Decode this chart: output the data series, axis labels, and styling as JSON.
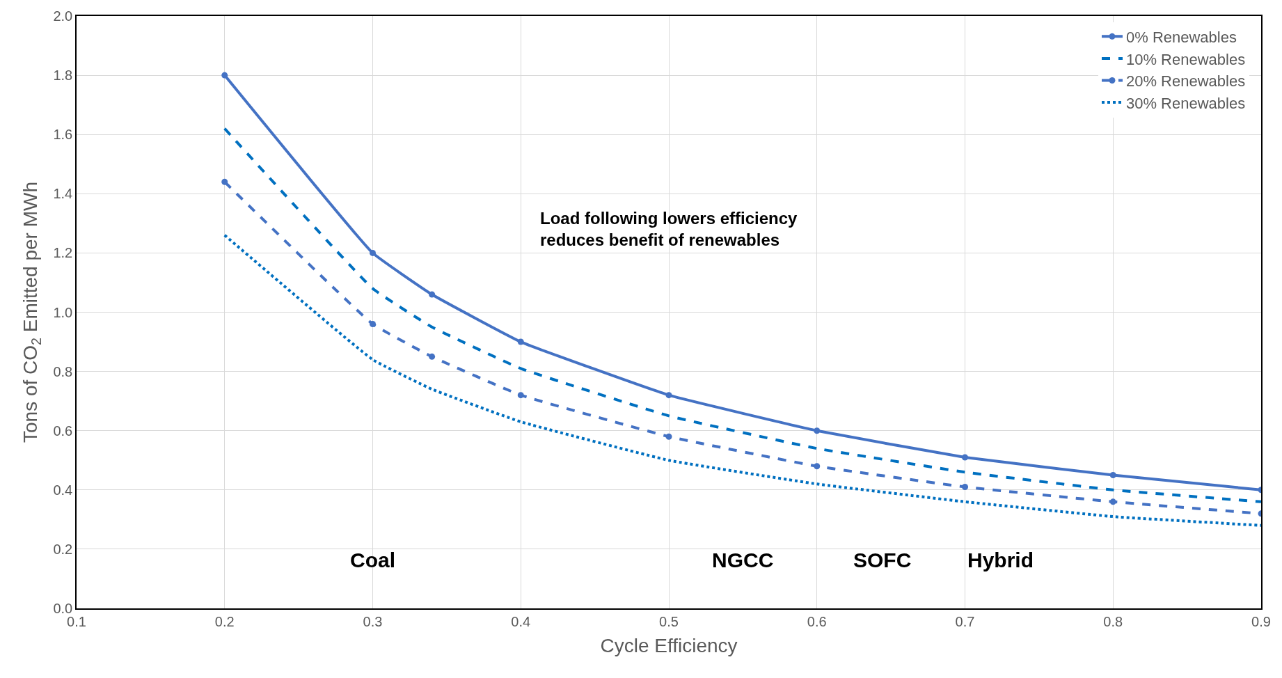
{
  "chart_data": {
    "type": "line",
    "xlabel": "Cycle Efficiency",
    "ylabel": "Tons of CO$_{2}$ Emitted per MWh",
    "x": [
      0.2,
      0.3,
      0.34,
      0.4,
      0.5,
      0.6,
      0.7,
      0.8,
      0.9
    ],
    "series": [
      {
        "name": "0% Renewables",
        "color": "#4472c4",
        "line_style": "solid",
        "marker": "circle",
        "values": [
          1.8,
          1.2,
          1.06,
          0.9,
          0.72,
          0.6,
          0.51,
          0.45,
          0.4
        ]
      },
      {
        "name": "10% Renewables",
        "color": "#0070c0",
        "line_style": "dashed",
        "marker": "none",
        "values": [
          1.62,
          1.08,
          0.95,
          0.81,
          0.65,
          0.54,
          0.46,
          0.4,
          0.36
        ]
      },
      {
        "name": "20% Renewables",
        "color": "#4472c4",
        "line_style": "dashed",
        "marker": "circle",
        "values": [
          1.44,
          0.96,
          0.85,
          0.72,
          0.58,
          0.48,
          0.41,
          0.36,
          0.32
        ]
      },
      {
        "name": "30% Renewables",
        "color": "#0070c0",
        "line_style": "dotted",
        "marker": "none",
        "values": [
          1.26,
          0.84,
          0.74,
          0.63,
          0.5,
          0.42,
          0.36,
          0.31,
          0.28
        ]
      }
    ],
    "xlim": [
      0.1,
      0.9
    ],
    "xticks": [
      0.1,
      0.2,
      0.3,
      0.4,
      0.5,
      0.6,
      0.7,
      0.8,
      0.9
    ],
    "ylim": [
      0,
      2.0
    ],
    "yticks": [
      {
        "value": 0,
        "label": "0.0"
      },
      0.2,
      0.4,
      0.6,
      0.8,
      {
        "value": 1,
        "label": "1.0"
      },
      1.2,
      1.4,
      1.6,
      1.8,
      {
        "value": 2,
        "label": "2.0"
      }
    ],
    "grid": true,
    "legend": "top right",
    "annotations": [
      "Load following lowers efficiency\nreduces benefit of renewables",
      "Coal",
      "NGCC",
      "SOFC",
      "Hybrid"
    ]
  }
}
